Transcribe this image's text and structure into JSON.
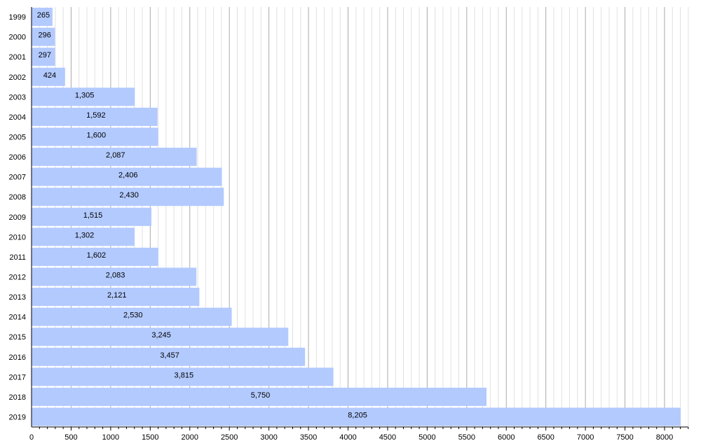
{
  "chart_data": {
    "type": "bar",
    "orientation": "horizontal",
    "categories": [
      "1999",
      "2000",
      "2001",
      "2002",
      "2003",
      "2004",
      "2005",
      "2006",
      "2007",
      "2008",
      "2009",
      "2010",
      "2011",
      "2012",
      "2013",
      "2014",
      "2015",
      "2016",
      "2017",
      "2018",
      "2019"
    ],
    "values": [
      265,
      296,
      297,
      424,
      1305,
      1592,
      1600,
      2087,
      2406,
      2430,
      1515,
      1302,
      1602,
      2083,
      2121,
      2530,
      3245,
      3457,
      3815,
      5750,
      8205
    ],
    "data_labels": [
      "265",
      "296",
      "297",
      "424",
      "1,305",
      "1,592",
      "1,600",
      "2,087",
      "2,406",
      "2,430",
      "1,515",
      "1,302",
      "1,602",
      "2,083",
      "2,121",
      "2,530",
      "3,245",
      "3,457",
      "3,815",
      "5,750",
      "8,205"
    ],
    "x_ticks": [
      0,
      500,
      1000,
      1500,
      2000,
      2500,
      3000,
      3500,
      4000,
      4500,
      5000,
      5500,
      6000,
      6500,
      7000,
      7500,
      8000
    ],
    "xlim": [
      0,
      8300
    ],
    "minor_tick_step": 100,
    "grid": true,
    "title": "",
    "xlabel": "",
    "ylabel": "",
    "colors": {
      "bar": "#b3caff",
      "major_grid": "#aaaaaa",
      "minor_grid": "#e0e0e0",
      "axis": "#000000"
    }
  }
}
